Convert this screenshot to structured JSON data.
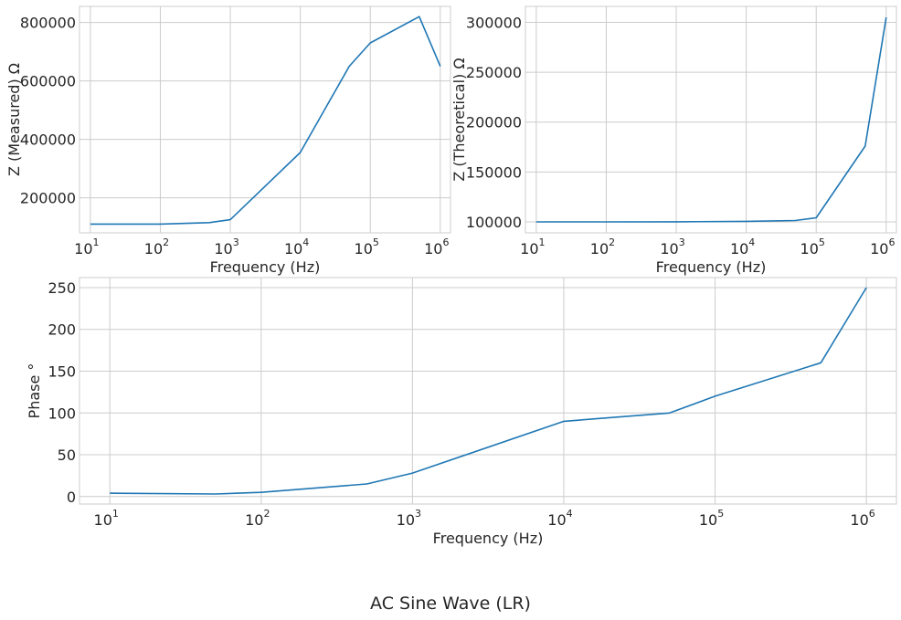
{
  "suptitle": "AC Sine Wave (LR)",
  "line_color": "#1f77b4",
  "chart_data": [
    {
      "type": "line",
      "xscale": "log",
      "xlabel": "Frequency (Hz)",
      "ylabel": "Z (Measured) Ω",
      "xlim": [
        7,
        1400000
      ],
      "ylim": [
        80000,
        855000
      ],
      "xticks": [
        10,
        100,
        1000,
        10000,
        100000,
        1000000
      ],
      "xtick_base": "10",
      "xtick_exps": [
        "1",
        "2",
        "3",
        "4",
        "5",
        "6"
      ],
      "yticks": [
        200000,
        400000,
        600000,
        800000
      ],
      "ytick_labels": [
        "200000",
        "400000",
        "600000",
        "800000"
      ],
      "grid": true,
      "x": [
        10,
        100,
        500,
        1000,
        10000,
        50000,
        100000,
        500000,
        1000000
      ],
      "y": [
        110000,
        110000,
        115000,
        125000,
        355000,
        650000,
        730000,
        820000,
        650000
      ]
    },
    {
      "type": "line",
      "xscale": "log",
      "xlabel": "Frequency (Hz)",
      "ylabel": "Z (Theoretical)  Ω",
      "xlim": [
        7,
        1400000
      ],
      "ylim": [
        89000,
        316000
      ],
      "xticks": [
        10,
        100,
        1000,
        10000,
        100000,
        1000000
      ],
      "xtick_base": "10",
      "xtick_exps": [
        "1",
        "2",
        "3",
        "4",
        "5",
        "6"
      ],
      "yticks": [
        100000,
        150000,
        200000,
        250000,
        300000
      ],
      "ytick_labels": [
        "100000",
        "150000",
        "200000",
        "250000",
        "300000"
      ],
      "grid": true,
      "x": [
        10,
        100,
        1000,
        10000,
        50000,
        100000,
        500000,
        1000000
      ],
      "y": [
        100000,
        100000,
        100100,
        100500,
        101400,
        104100,
        176000,
        305000
      ]
    },
    {
      "type": "line",
      "xscale": "log",
      "xlabel": "Frequency (Hz)",
      "ylabel": "Phase °",
      "xlim": [
        6.3,
        1580000
      ],
      "ylim": [
        -9,
        262
      ],
      "xticks": [
        10,
        100,
        1000,
        10000,
        100000,
        1000000
      ],
      "xtick_base": "10",
      "xtick_exps": [
        "1",
        "2",
        "3",
        "4",
        "5",
        "6"
      ],
      "yticks": [
        0,
        50,
        100,
        150,
        200,
        250
      ],
      "ytick_labels": [
        "0",
        "50",
        "100",
        "150",
        "200",
        "250"
      ],
      "grid": true,
      "x": [
        10,
        50,
        100,
        500,
        1000,
        10000,
        50000,
        100000,
        500000,
        1000000
      ],
      "y": [
        4,
        3,
        5,
        15,
        28,
        90,
        100,
        120,
        160,
        250
      ]
    }
  ]
}
